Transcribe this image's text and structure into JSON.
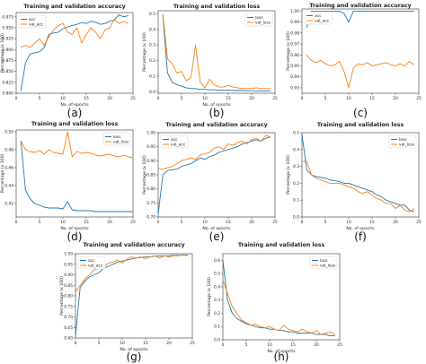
{
  "colors": {
    "series1": "#1f77b4",
    "series2": "#ff7f0e"
  },
  "chart_data": [
    {
      "type": "line",
      "panel_label": "(a)",
      "title": "Training and validation accuracy",
      "xlabel": "No. of epochs",
      "ylabel": "Percentage (x 100)",
      "xlim": [
        0,
        25
      ],
      "ylim": [
        0.8,
        0.985
      ],
      "xticks": [
        "0",
        "5",
        "10",
        "15",
        "20",
        "25"
      ],
      "yticks": [
        "0.800",
        "0.825",
        "0.850",
        "0.875",
        "0.900",
        "0.925",
        "0.950",
        "0.975"
      ],
      "legend": "top-left",
      "series": [
        {
          "name": "acc",
          "x": [
            1,
            2,
            3,
            4,
            5,
            6,
            7,
            8,
            9,
            10,
            11,
            12,
            13,
            14,
            15,
            16,
            17,
            18,
            19,
            20,
            21,
            22,
            23,
            24
          ],
          "values": [
            0.805,
            0.87,
            0.89,
            0.893,
            0.895,
            0.905,
            0.935,
            0.938,
            0.94,
            0.948,
            0.952,
            0.955,
            0.958,
            0.962,
            0.96,
            0.965,
            0.963,
            0.958,
            0.96,
            0.965,
            0.968,
            0.98,
            0.975,
            0.978
          ]
        },
        {
          "name": "val_acc",
          "x": [
            1,
            2,
            3,
            4,
            5,
            6,
            7,
            8,
            9,
            10,
            11,
            12,
            13,
            14,
            15,
            16,
            17,
            18,
            19,
            20,
            21,
            22,
            23,
            24
          ],
          "values": [
            0.905,
            0.91,
            0.905,
            0.915,
            0.925,
            0.91,
            0.93,
            0.945,
            0.955,
            0.96,
            0.94,
            0.935,
            0.95,
            0.915,
            0.935,
            0.95,
            0.94,
            0.925,
            0.945,
            0.95,
            0.97,
            0.96,
            0.965,
            0.96
          ]
        }
      ]
    },
    {
      "type": "line",
      "panel_label": "(b)",
      "title": "Training and validation loss",
      "xlabel": "No. of epochs",
      "ylabel": "Percentage (x 100)",
      "xlim": [
        0,
        25
      ],
      "ylim": [
        -0.01,
        0.52
      ],
      "xticks": [
        "0",
        "5",
        "10",
        "15",
        "20",
        "25"
      ],
      "yticks": [
        "0.0",
        "0.1",
        "0.2",
        "0.3",
        "0.4",
        "0.5"
      ],
      "legend": "top-right",
      "series": [
        {
          "name": "loss",
          "x": [
            1,
            2,
            3,
            4,
            5,
            6,
            7,
            8,
            9,
            10,
            11,
            12,
            13,
            14,
            15,
            16,
            17,
            18,
            19,
            20,
            21,
            22,
            23,
            24
          ],
          "values": [
            0.49,
            0.12,
            0.06,
            0.045,
            0.035,
            0.025,
            0.02,
            0.02,
            0.015,
            0.015,
            0.012,
            0.012,
            0.01,
            0.01,
            0.01,
            0.008,
            0.008,
            0.008,
            0.006,
            0.006,
            0.005,
            0.005,
            0.005,
            0.005
          ]
        },
        {
          "name": "val_loss",
          "x": [
            1,
            2,
            3,
            4,
            5,
            6,
            7,
            8,
            9,
            10,
            11,
            12,
            13,
            14,
            15,
            16,
            17,
            18,
            19,
            20,
            21,
            22,
            23,
            24
          ],
          "values": [
            0.5,
            0.21,
            0.18,
            0.12,
            0.13,
            0.07,
            0.09,
            0.3,
            0.06,
            0.025,
            0.08,
            0.045,
            0.03,
            0.03,
            0.04,
            0.03,
            0.025,
            0.02,
            0.02,
            0.02,
            0.025,
            0.02,
            0.02,
            0.02
          ]
        }
      ]
    },
    {
      "type": "line",
      "panel_label": "(c)",
      "title": "Training and validation accuracy",
      "xlabel": "",
      "ylabel": "Percentage (x 100)",
      "xlim": [
        0,
        25
      ],
      "ylim": [
        0.925,
        1.002
      ],
      "xticks": [
        "0",
        "5",
        "10",
        "15",
        "20",
        "25"
      ],
      "yticks": [
        "0.93",
        "0.94",
        "0.95",
        "0.96",
        "0.97",
        "0.98",
        "0.99",
        "1.00"
      ],
      "legend": "top-left",
      "series": [
        {
          "name": "acc",
          "x": [
            1,
            2,
            3,
            4,
            5,
            6,
            7,
            8,
            9,
            10,
            11,
            12,
            13,
            14,
            15,
            16,
            17,
            18,
            19,
            20,
            21,
            22,
            23,
            24
          ],
          "values": [
            0.985,
            1.0,
            1.0,
            1.0,
            1.0,
            1.0,
            1.0,
            1.0,
            0.998,
            0.99,
            1.0,
            1.0,
            1.0,
            1.0,
            1.0,
            1.0,
            1.0,
            1.0,
            1.0,
            1.0,
            1.0,
            1.0,
            1.0,
            1.0
          ]
        },
        {
          "name": "val_acc",
          "x": [
            1,
            2,
            3,
            4,
            5,
            6,
            7,
            8,
            9,
            10,
            11,
            12,
            13,
            14,
            15,
            16,
            17,
            18,
            19,
            20,
            21,
            22,
            23,
            24
          ],
          "values": [
            0.96,
            0.955,
            0.953,
            0.955,
            0.952,
            0.95,
            0.951,
            0.954,
            0.945,
            0.93,
            0.948,
            0.952,
            0.951,
            0.953,
            0.95,
            0.951,
            0.952,
            0.953,
            0.951,
            0.95,
            0.952,
            0.95,
            0.954,
            0.951
          ]
        }
      ]
    },
    {
      "type": "line",
      "panel_label": "(d)",
      "title": "Training and validation loss",
      "xlabel": "No. of epochs",
      "ylabel": "Percentage (x 100)",
      "xlim": [
        0,
        25
      ],
      "ylim": [
        0.405,
        0.502
      ],
      "xticks": [
        "0",
        "5",
        "10",
        "15",
        "20",
        "25"
      ],
      "yticks": [
        "0.42",
        "0.44",
        "0.46",
        "0.48",
        "0.50"
      ],
      "legend": "top-right",
      "series": [
        {
          "name": "loss",
          "x": [
            1,
            2,
            3,
            4,
            5,
            6,
            7,
            8,
            9,
            10,
            11,
            12,
            13,
            14,
            15,
            16,
            17,
            18,
            19,
            20,
            21,
            22,
            23,
            24,
            25
          ],
          "values": [
            0.49,
            0.435,
            0.425,
            0.42,
            0.418,
            0.416,
            0.415,
            0.415,
            0.415,
            0.414,
            0.422,
            0.413,
            0.412,
            0.412,
            0.412,
            0.412,
            0.411,
            0.411,
            0.411,
            0.411,
            0.411,
            0.411,
            0.411,
            0.411,
            0.411
          ]
        },
        {
          "name": "val_loss",
          "x": [
            1,
            2,
            3,
            4,
            5,
            6,
            7,
            8,
            9,
            10,
            11,
            12,
            13,
            14,
            15,
            16,
            17,
            18,
            19,
            20,
            21,
            22,
            23,
            24,
            25
          ],
          "values": [
            0.49,
            0.48,
            0.478,
            0.477,
            0.479,
            0.475,
            0.48,
            0.477,
            0.476,
            0.475,
            0.5,
            0.472,
            0.478,
            0.476,
            0.477,
            0.476,
            0.474,
            0.473,
            0.474,
            0.475,
            0.473,
            0.472,
            0.474,
            0.472,
            0.471
          ]
        }
      ]
    },
    {
      "type": "line",
      "panel_label": "(e)",
      "title": "Training and validation accuracy",
      "xlabel": "No. of epochs",
      "ylabel": "Percentage (x 100)",
      "xlim": [
        0,
        25
      ],
      "ylim": [
        0.7,
        1.0
      ],
      "xticks": [
        "0",
        "5",
        "10",
        "15",
        "20",
        "25"
      ],
      "yticks": [
        "0.70",
        "0.75",
        "0.80",
        "0.85",
        "0.90",
        "0.95",
        "1.00"
      ],
      "legend": "top-left",
      "series": [
        {
          "name": "acc",
          "x": [
            0,
            1,
            2,
            3,
            4,
            5,
            6,
            7,
            8,
            9,
            10,
            11,
            12,
            13,
            14,
            15,
            16,
            17,
            18,
            19,
            20,
            21,
            22,
            23,
            24
          ],
          "values": [
            0.71,
            0.85,
            0.865,
            0.868,
            0.87,
            0.88,
            0.885,
            0.89,
            0.9,
            0.91,
            0.905,
            0.915,
            0.92,
            0.93,
            0.935,
            0.94,
            0.945,
            0.95,
            0.96,
            0.965,
            0.97,
            0.975,
            0.97,
            0.98,
            0.985
          ]
        },
        {
          "name": "val_acc",
          "x": [
            0,
            1,
            2,
            3,
            4,
            5,
            6,
            7,
            8,
            9,
            10,
            11,
            12,
            13,
            14,
            15,
            16,
            17,
            18,
            19,
            20,
            21,
            22,
            23,
            24
          ],
          "values": [
            0.87,
            0.87,
            0.875,
            0.88,
            0.89,
            0.9,
            0.905,
            0.91,
            0.905,
            0.92,
            0.925,
            0.93,
            0.945,
            0.95,
            0.94,
            0.96,
            0.955,
            0.965,
            0.97,
            0.96,
            0.975,
            0.98,
            0.97,
            0.99,
            0.985
          ]
        }
      ]
    },
    {
      "type": "line",
      "panel_label": "(f)",
      "title": "Training and validation loss",
      "xlabel": "No. of epochs",
      "ylabel": "Percentage (x 100)",
      "xlim": [
        0,
        25
      ],
      "ylim": [
        0.0,
        0.5
      ],
      "xticks": [
        "0",
        "5",
        "10",
        "15",
        "20",
        "25"
      ],
      "yticks": [
        "0.0",
        "0.1",
        "0.2",
        "0.3",
        "0.4",
        "0.5"
      ],
      "legend": "top-right",
      "series": [
        {
          "name": "loss",
          "x": [
            0,
            1,
            2,
            3,
            4,
            5,
            6,
            7,
            8,
            9,
            10,
            11,
            12,
            13,
            14,
            15,
            16,
            17,
            18,
            19,
            20,
            21,
            22,
            23,
            24
          ],
          "values": [
            0.49,
            0.28,
            0.25,
            0.24,
            0.235,
            0.23,
            0.22,
            0.215,
            0.21,
            0.2,
            0.2,
            0.19,
            0.18,
            0.17,
            0.16,
            0.15,
            0.13,
            0.12,
            0.1,
            0.09,
            0.08,
            0.07,
            0.07,
            0.04,
            0.03
          ]
        },
        {
          "name": "val_loss",
          "x": [
            0,
            1,
            2,
            3,
            4,
            5,
            6,
            7,
            8,
            9,
            10,
            11,
            12,
            13,
            14,
            15,
            16,
            17,
            18,
            19,
            20,
            21,
            22,
            23,
            24
          ],
          "values": [
            0.33,
            0.33,
            0.25,
            0.23,
            0.22,
            0.21,
            0.2,
            0.2,
            0.2,
            0.19,
            0.18,
            0.17,
            0.15,
            0.14,
            0.15,
            0.13,
            0.11,
            0.1,
            0.08,
            0.08,
            0.05,
            0.07,
            0.04,
            0.03,
            0.05
          ]
        }
      ]
    },
    {
      "type": "line",
      "panel_label": "(g)",
      "title": "Training and validation accuracy",
      "xlabel": "No. of epochs",
      "ylabel": "Percentage (x 100)",
      "xlim": [
        0,
        25
      ],
      "ylim": [
        0.6,
        1.0
      ],
      "xticks": [
        "0",
        "5",
        "10",
        "15",
        "20",
        "25"
      ],
      "yticks": [
        "0.60",
        "0.65",
        "0.70",
        "0.75",
        "0.80",
        "0.85",
        "0.90",
        "0.95",
        "1.00"
      ],
      "legend": "top-left",
      "series": [
        {
          "name": "acc",
          "x": [
            0,
            1,
            2,
            3,
            4,
            5,
            6,
            7,
            8,
            9,
            10,
            11,
            12,
            13,
            14,
            15,
            16,
            17,
            18,
            19,
            20,
            21,
            22,
            23,
            24
          ],
          "values": [
            0.61,
            0.84,
            0.87,
            0.89,
            0.9,
            0.91,
            0.93,
            0.94,
            0.95,
            0.96,
            0.965,
            0.97,
            0.975,
            0.98,
            0.982,
            0.985,
            0.985,
            0.988,
            0.99,
            0.99,
            0.99,
            0.992,
            0.992,
            0.993,
            0.995
          ]
        },
        {
          "name": "val_acc",
          "x": [
            0,
            1,
            2,
            3,
            4,
            5,
            6,
            7,
            8,
            9,
            10,
            11,
            12,
            13,
            14,
            15,
            16,
            17,
            18,
            19,
            20,
            21,
            22,
            23,
            24
          ],
          "values": [
            0.82,
            0.85,
            0.88,
            0.9,
            0.925,
            0.93,
            0.935,
            0.955,
            0.96,
            0.97,
            0.955,
            0.975,
            0.985,
            0.98,
            0.985,
            0.975,
            0.985,
            0.99,
            0.98,
            0.99,
            0.985,
            0.99,
            0.99,
            0.995,
            0.99
          ]
        }
      ]
    },
    {
      "type": "line",
      "panel_label": "(h)",
      "title": "Training and validation loss",
      "xlabel": "No. of epochs",
      "ylabel": "Percentage (x 100)",
      "xlim": [
        0,
        25
      ],
      "ylim": [
        0.0,
        0.65
      ],
      "xticks": [
        "0",
        "5",
        "10",
        "15",
        "20",
        "25"
      ],
      "yticks": [
        "0.0",
        "0.1",
        "0.2",
        "0.3",
        "0.4",
        "0.5",
        "0.6"
      ],
      "legend": "top-right",
      "series": [
        {
          "name": "loss",
          "x": [
            0,
            1,
            2,
            3,
            4,
            5,
            6,
            7,
            8,
            9,
            10,
            11,
            12,
            13,
            14,
            15,
            16,
            17,
            18,
            19,
            20,
            21,
            22,
            23,
            24
          ],
          "values": [
            0.6,
            0.3,
            0.2,
            0.16,
            0.14,
            0.12,
            0.11,
            0.1,
            0.09,
            0.09,
            0.08,
            0.08,
            0.07,
            0.07,
            0.06,
            0.06,
            0.05,
            0.05,
            0.05,
            0.05,
            0.04,
            0.04,
            0.04,
            0.03,
            0.03
          ]
        },
        {
          "name": "val_loss",
          "x": [
            0,
            1,
            2,
            3,
            4,
            5,
            6,
            7,
            8,
            9,
            10,
            11,
            12,
            13,
            14,
            15,
            16,
            17,
            18,
            19,
            20,
            21,
            22,
            23,
            24
          ],
          "values": [
            0.45,
            0.35,
            0.25,
            0.2,
            0.15,
            0.13,
            0.11,
            0.12,
            0.1,
            0.09,
            0.1,
            0.08,
            0.07,
            0.11,
            0.08,
            0.07,
            0.06,
            0.08,
            0.06,
            0.05,
            0.07,
            0.04,
            0.05,
            0.06,
            0.04
          ]
        }
      ]
    }
  ]
}
